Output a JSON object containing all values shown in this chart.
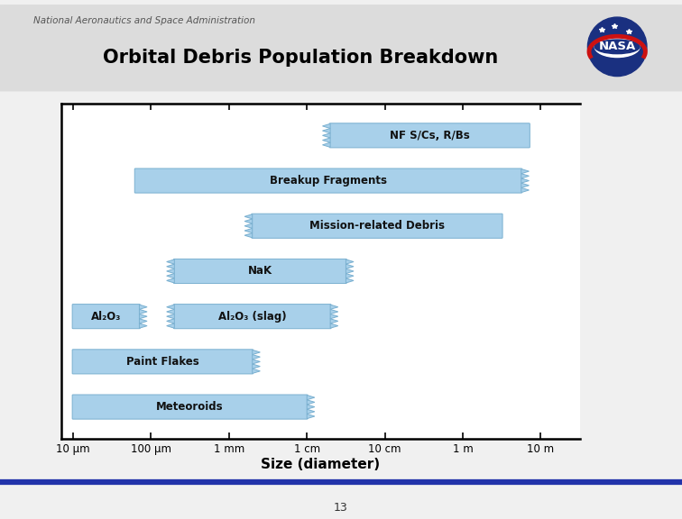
{
  "title": "Orbital Debris Population Breakdown",
  "subtitle": "National Aeronautics and Space Administration",
  "xlabel": "Size (diameter)",
  "page_number": "13",
  "background_color": "#f0f0f0",
  "plot_bg": "#ffffff",
  "bar_color": "#a8d0ea",
  "bar_edge_color": "#7ab0d0",
  "title_color": "#000000",
  "subtitle_color": "#555555",
  "tick_labels": [
    "10 μm",
    "100 μm",
    "1 mm",
    "1 cm",
    "10 cm",
    "1 m",
    "10 m"
  ],
  "tick_positions": [
    0,
    1,
    2,
    3,
    4,
    5,
    6
  ],
  "bars": [
    {
      "label": "NF S/Cs, R/Bs",
      "x_start": 3.3,
      "x_end": 5.85,
      "y": 7.0,
      "jagged_left": true,
      "jagged_right": false
    },
    {
      "label": "Breakup Fragments",
      "x_start": 0.8,
      "x_end": 5.75,
      "y": 6.0,
      "jagged_left": false,
      "jagged_right": true
    },
    {
      "label": "Mission-related Debris",
      "x_start": 2.3,
      "x_end": 5.5,
      "y": 5.0,
      "jagged_left": true,
      "jagged_right": false
    },
    {
      "label": "NaK",
      "x_start": 1.3,
      "x_end": 3.5,
      "y": 4.0,
      "jagged_left": true,
      "jagged_right": true
    },
    {
      "label": "Al₂O₃ (slag)",
      "x_start": 1.3,
      "x_end": 3.3,
      "y": 3.0,
      "jagged_left": true,
      "jagged_right": true
    },
    {
      "label": "Al₂O₃",
      "x_start": 0.0,
      "x_end": 0.85,
      "y": 3.0,
      "jagged_left": false,
      "jagged_right": true
    },
    {
      "label": "Paint Flakes",
      "x_start": 0.0,
      "x_end": 2.3,
      "y": 2.0,
      "jagged_left": false,
      "jagged_right": true
    },
    {
      "label": "Meteoroids",
      "x_start": 0.0,
      "x_end": 3.0,
      "y": 1.0,
      "jagged_left": false,
      "jagged_right": true
    }
  ],
  "bar_height": 0.52,
  "ylim": [
    0.3,
    7.7
  ],
  "xlim": [
    -0.15,
    6.5
  ],
  "header_bg": "#dcdcdc",
  "blue_line_color": "#2233aa",
  "gold_line_color": "#b8960c"
}
